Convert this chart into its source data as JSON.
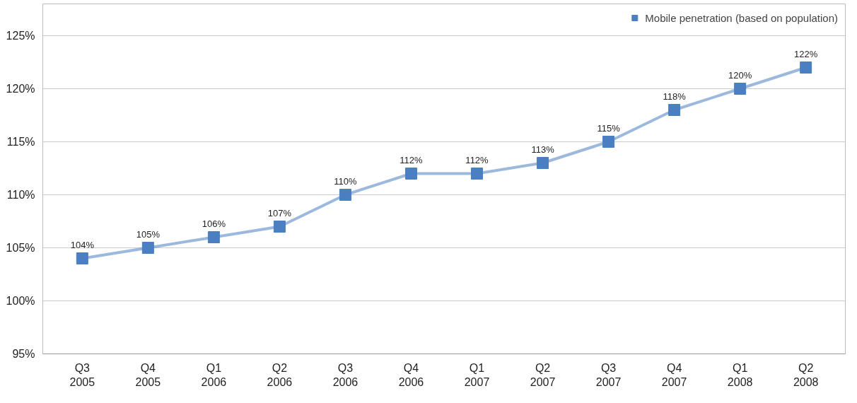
{
  "chart_data": {
    "type": "line",
    "categories": [
      "Q3\n2005",
      "Q4\n2005",
      "Q1\n2006",
      "Q2\n2006",
      "Q3\n2006",
      "Q4\n2006",
      "Q1\n2007",
      "Q2\n2007",
      "Q3\n2007",
      "Q4\n2007",
      "Q1\n2008",
      "Q2\n2008"
    ],
    "series": [
      {
        "name": "Mobile penetration (based on population)",
        "color": "#4a7fc1",
        "values": [
          104,
          105,
          106,
          107,
          110,
          112,
          112,
          113,
          115,
          118,
          120,
          122
        ],
        "value_labels": [
          "104%",
          "105%",
          "106%",
          "107%",
          "110%",
          "112%",
          "112%",
          "113%",
          "115%",
          "118%",
          "120%",
          "122%"
        ]
      }
    ],
    "ylim": [
      95,
      128
    ],
    "yticks": [
      {
        "value": 95,
        "label": "95%"
      },
      {
        "value": 100,
        "label": "100%"
      },
      {
        "value": 105,
        "label": "105%"
      },
      {
        "value": 110,
        "label": "110%"
      },
      {
        "value": 115,
        "label": "115%"
      },
      {
        "value": 120,
        "label": "120%"
      },
      {
        "value": 125,
        "label": "125%"
      }
    ],
    "grid": "y",
    "legend": "top right",
    "marker": "square",
    "line_style": "solid"
  }
}
